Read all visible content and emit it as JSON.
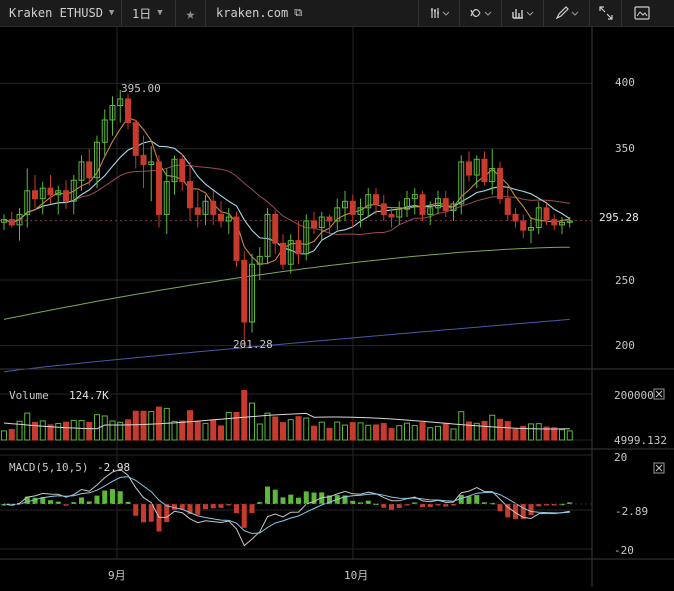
{
  "toolbar": {
    "symbol": "Kraken ETHUSD",
    "interval": "1日",
    "site": "kraken.com"
  },
  "icons": {
    "star": "star-icon",
    "external": "external-link-icon",
    "bar_style": "bar-style-icon",
    "indicators": "indicators-icon",
    "chart_type": "chart-type-icon",
    "draw": "pencil-icon",
    "fullscreen": "fullscreen-icon",
    "snapshot": "snapshot-icon"
  },
  "colors": {
    "up": "#5cb83a",
    "down": "#c73a2e",
    "grid": "#262626",
    "axis_text": "#c8c8c8",
    "ma_short": "#c8883a",
    "ma_mid": "#a6d8e8",
    "ma_long": "#9c4a58",
    "ma_longer": "#7ea65c",
    "ma_longest": "#4a58a8",
    "macd_line": "#c8c8c8",
    "signal_line": "#8cc8e8"
  },
  "chart_data": {
    "type": "candlestick",
    "price_axis": {
      "ticks": [
        "400",
        "350",
        "295.28",
        "250",
        "200"
      ],
      "last": "295.28",
      "range": [
        185,
        420
      ]
    },
    "labels": {
      "high": "395.00",
      "low": "201.28"
    },
    "x_axis": {
      "ticks": [
        "9月",
        "10月"
      ]
    },
    "candles": [
      [
        294,
        300,
        288,
        296
      ],
      [
        296,
        302,
        290,
        292
      ],
      [
        292,
        305,
        280,
        300
      ],
      [
        300,
        335,
        290,
        318
      ],
      [
        318,
        330,
        305,
        312
      ],
      [
        312,
        325,
        300,
        320
      ],
      [
        320,
        330,
        308,
        315
      ],
      [
        315,
        322,
        300,
        318
      ],
      [
        318,
        326,
        304,
        310
      ],
      [
        310,
        330,
        300,
        326
      ],
      [
        326,
        345,
        318,
        340
      ],
      [
        340,
        350,
        322,
        328
      ],
      [
        328,
        360,
        320,
        355
      ],
      [
        355,
        380,
        345,
        372
      ],
      [
        372,
        390,
        360,
        383
      ],
      [
        383,
        395,
        370,
        388
      ],
      [
        388,
        392,
        365,
        370
      ],
      [
        370,
        372,
        335,
        345
      ],
      [
        345,
        360,
        320,
        338
      ],
      [
        338,
        352,
        310,
        340
      ],
      [
        340,
        345,
        290,
        300
      ],
      [
        300,
        335,
        285,
        325
      ],
      [
        325,
        345,
        315,
        342
      ],
      [
        342,
        346,
        318,
        325
      ],
      [
        325,
        340,
        295,
        305
      ],
      [
        305,
        318,
        290,
        300
      ],
      [
        300,
        315,
        292,
        310
      ],
      [
        310,
        318,
        292,
        300
      ],
      [
        300,
        310,
        290,
        295
      ],
      [
        295,
        305,
        285,
        298
      ],
      [
        298,
        302,
        260,
        265
      ],
      [
        265,
        272,
        200,
        218
      ],
      [
        218,
        270,
        210,
        262
      ],
      [
        262,
        275,
        250,
        268
      ],
      [
        268,
        305,
        262,
        300
      ],
      [
        300,
        303,
        270,
        278
      ],
      [
        278,
        285,
        258,
        262
      ],
      [
        262,
        285,
        255,
        280
      ],
      [
        280,
        295,
        262,
        270
      ],
      [
        270,
        300,
        265,
        295
      ],
      [
        295,
        302,
        285,
        290
      ],
      [
        290,
        302,
        280,
        298
      ],
      [
        298,
        300,
        285,
        295
      ],
      [
        295,
        312,
        288,
        305
      ],
      [
        305,
        318,
        295,
        310
      ],
      [
        310,
        315,
        290,
        300
      ],
      [
        300,
        312,
        290,
        305
      ],
      [
        305,
        320,
        298,
        315
      ],
      [
        315,
        320,
        300,
        308
      ],
      [
        308,
        315,
        295,
        300
      ],
      [
        300,
        305,
        290,
        298
      ],
      [
        298,
        310,
        292,
        304
      ],
      [
        304,
        318,
        298,
        312
      ],
      [
        312,
        320,
        300,
        315
      ],
      [
        315,
        318,
        295,
        300
      ],
      [
        300,
        310,
        292,
        305
      ],
      [
        305,
        318,
        300,
        312
      ],
      [
        312,
        318,
        298,
        303
      ],
      [
        303,
        310,
        295,
        308
      ],
      [
        308,
        345,
        300,
        340
      ],
      [
        340,
        348,
        325,
        330
      ],
      [
        330,
        345,
        320,
        342
      ],
      [
        342,
        348,
        322,
        325
      ],
      [
        325,
        350,
        315,
        335
      ],
      [
        335,
        340,
        308,
        312
      ],
      [
        312,
        320,
        295,
        300
      ],
      [
        300,
        305,
        290,
        295
      ],
      [
        295,
        300,
        282,
        288
      ],
      [
        288,
        298,
        278,
        290
      ],
      [
        290,
        310,
        285,
        305
      ],
      [
        305,
        308,
        292,
        296
      ],
      [
        296,
        300,
        288,
        292
      ],
      [
        292,
        298,
        285,
        294
      ],
      [
        294,
        298,
        290,
        295
      ]
    ],
    "volume": {
      "label": "Volume",
      "value": "124.7K",
      "axis_ticks": [
        "200000",
        "4999.132"
      ]
    },
    "macd": {
      "label": "MACD(5,10,5)",
      "value": "-2.98",
      "axis_ticks": [
        "20",
        "-2.89",
        "-20"
      ]
    }
  }
}
